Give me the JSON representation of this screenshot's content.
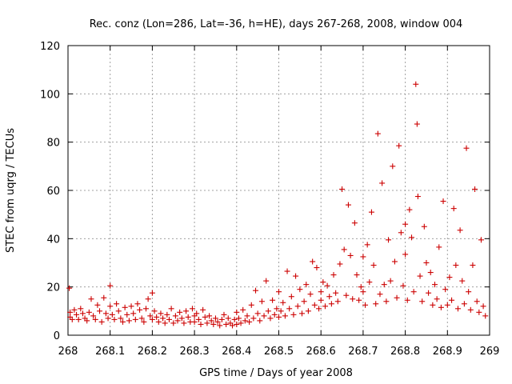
{
  "chart_data": {
    "type": "scatter",
    "title": "Rec. conz (Lon=286, Lat=-36, h=HE), days 267-268, 2008, window 004",
    "xlabel": "GPS time / Days of year 2008",
    "ylabel": "STEC from uqrg / TECUs",
    "xlim": [
      268,
      269
    ],
    "ylim": [
      0,
      120
    ],
    "xticks": [
      268,
      268.1,
      268.2,
      268.3,
      268.4,
      268.5,
      268.6,
      268.7,
      268.8,
      268.9,
      269
    ],
    "xtick_labels": [
      "268",
      "268.1",
      "268.2",
      "268.3",
      "268.4",
      "268.5",
      "268.6",
      "268.7",
      "268.8",
      "268.9",
      "269"
    ],
    "yticks": [
      0,
      20,
      40,
      60,
      80,
      100,
      120
    ],
    "ytick_labels": [
      "0",
      "20",
      "40",
      "60",
      "80",
      "100",
      "120"
    ],
    "grid": true,
    "marker": "+",
    "color": "#cc0000",
    "series": [
      {
        "name": "STEC",
        "points": [
          [
            268.003,
            19.5
          ],
          [
            268.005,
            9.5
          ],
          [
            268.005,
            7.5
          ],
          [
            268.01,
            6.5
          ],
          [
            268.015,
            10.5
          ],
          [
            268.02,
            8.5
          ],
          [
            268.025,
            6.5
          ],
          [
            268.03,
            11
          ],
          [
            268.035,
            9
          ],
          [
            268.04,
            7
          ],
          [
            268.045,
            6
          ],
          [
            268.05,
            9.5
          ],
          [
            268.055,
            15
          ],
          [
            268.06,
            8
          ],
          [
            268.065,
            6.5
          ],
          [
            268.07,
            12.5
          ],
          [
            268.075,
            10
          ],
          [
            268.08,
            5.5
          ],
          [
            268.085,
            15.5
          ],
          [
            268.09,
            9
          ],
          [
            268.095,
            7
          ],
          [
            268.1,
            20.5
          ],
          [
            268.1,
            12
          ],
          [
            268.105,
            8.5
          ],
          [
            268.11,
            6.5
          ],
          [
            268.115,
            13
          ],
          [
            268.12,
            10
          ],
          [
            268.125,
            7
          ],
          [
            268.13,
            5.5
          ],
          [
            268.135,
            11.5
          ],
          [
            268.14,
            8.5
          ],
          [
            268.145,
            6
          ],
          [
            268.15,
            12
          ],
          [
            268.155,
            9
          ],
          [
            268.16,
            6.5
          ],
          [
            268.165,
            13
          ],
          [
            268.17,
            10.5
          ],
          [
            268.175,
            7
          ],
          [
            268.18,
            5.5
          ],
          [
            268.185,
            11
          ],
          [
            268.19,
            15
          ],
          [
            268.195,
            8
          ],
          [
            268.2,
            17.5
          ],
          [
            268.2,
            6.5
          ],
          [
            268.205,
            10
          ],
          [
            268.21,
            7.5
          ],
          [
            268.215,
            5.5
          ],
          [
            268.22,
            9
          ],
          [
            268.225,
            7
          ],
          [
            268.23,
            5
          ],
          [
            268.235,
            8.5
          ],
          [
            268.24,
            6.5
          ],
          [
            268.245,
            11
          ],
          [
            268.25,
            5
          ],
          [
            268.255,
            8
          ],
          [
            268.26,
            6
          ],
          [
            268.265,
            9.5
          ],
          [
            268.27,
            7
          ],
          [
            268.275,
            5
          ],
          [
            268.28,
            10
          ],
          [
            268.285,
            7.5
          ],
          [
            268.29,
            5.5
          ],
          [
            268.295,
            11
          ],
          [
            268.3,
            8
          ],
          [
            268.3,
            5.5
          ],
          [
            268.305,
            9
          ],
          [
            268.31,
            6.5
          ],
          [
            268.315,
            4.5
          ],
          [
            268.32,
            10.5
          ],
          [
            268.325,
            7.5
          ],
          [
            268.33,
            5
          ],
          [
            268.335,
            8
          ],
          [
            268.34,
            6
          ],
          [
            268.345,
            4.5
          ],
          [
            268.35,
            7
          ],
          [
            268.355,
            5.5
          ],
          [
            268.36,
            4
          ],
          [
            268.365,
            6.5
          ],
          [
            268.37,
            8.5
          ],
          [
            268.375,
            4.5
          ],
          [
            268.38,
            7
          ],
          [
            268.385,
            5
          ],
          [
            268.39,
            4
          ],
          [
            268.395,
            6.5
          ],
          [
            268.4,
            9.5
          ],
          [
            268.4,
            4.5
          ],
          [
            268.405,
            7
          ],
          [
            268.41,
            5
          ],
          [
            268.415,
            10.5
          ],
          [
            268.42,
            6
          ],
          [
            268.425,
            8
          ],
          [
            268.43,
            5.5
          ],
          [
            268.435,
            12.5
          ],
          [
            268.44,
            7
          ],
          [
            268.445,
            18.5
          ],
          [
            268.45,
            9
          ],
          [
            268.455,
            6
          ],
          [
            268.46,
            14
          ],
          [
            268.465,
            8
          ],
          [
            268.47,
            22.5
          ],
          [
            268.475,
            10
          ],
          [
            268.48,
            7
          ],
          [
            268.485,
            14.5
          ],
          [
            268.49,
            8.5
          ],
          [
            268.495,
            11
          ],
          [
            268.5,
            18
          ],
          [
            268.5,
            7.5
          ],
          [
            268.505,
            10
          ],
          [
            268.51,
            13.5
          ],
          [
            268.515,
            8
          ],
          [
            268.52,
            26.5
          ],
          [
            268.525,
            11
          ],
          [
            268.53,
            16
          ],
          [
            268.535,
            8.5
          ],
          [
            268.54,
            24.5
          ],
          [
            268.545,
            12
          ],
          [
            268.55,
            19
          ],
          [
            268.555,
            9
          ],
          [
            268.56,
            14
          ],
          [
            268.565,
            21
          ],
          [
            268.57,
            10
          ],
          [
            268.575,
            17
          ],
          [
            268.58,
            30.5
          ],
          [
            268.585,
            12.5
          ],
          [
            268.59,
            28
          ],
          [
            268.595,
            11
          ],
          [
            268.6,
            18
          ],
          [
            268.6,
            14.5
          ],
          [
            268.605,
            22
          ],
          [
            268.61,
            12
          ],
          [
            268.615,
            20.5
          ],
          [
            268.62,
            16
          ],
          [
            268.625,
            13
          ],
          [
            268.63,
            25
          ],
          [
            268.635,
            17.5
          ],
          [
            268.64,
            14
          ],
          [
            268.645,
            29.5
          ],
          [
            268.65,
            60.5
          ],
          [
            268.655,
            35.5
          ],
          [
            268.66,
            16.5
          ],
          [
            268.665,
            54
          ],
          [
            268.67,
            33
          ],
          [
            268.675,
            15
          ],
          [
            268.68,
            46.5
          ],
          [
            268.685,
            25
          ],
          [
            268.69,
            14.5
          ],
          [
            268.695,
            20
          ],
          [
            268.7,
            32.5
          ],
          [
            268.7,
            18
          ],
          [
            268.705,
            12.5
          ],
          [
            268.71,
            37.5
          ],
          [
            268.715,
            22
          ],
          [
            268.72,
            51
          ],
          [
            268.725,
            29
          ],
          [
            268.73,
            13
          ],
          [
            268.735,
            83.5
          ],
          [
            268.74,
            17
          ],
          [
            268.745,
            63
          ],
          [
            268.75,
            21
          ],
          [
            268.755,
            14
          ],
          [
            268.76,
            39.5
          ],
          [
            268.765,
            22.5
          ],
          [
            268.77,
            70
          ],
          [
            268.775,
            30.5
          ],
          [
            268.78,
            15.5
          ],
          [
            268.785,
            78.5
          ],
          [
            268.79,
            42.5
          ],
          [
            268.795,
            20.5
          ],
          [
            268.8,
            33.5
          ],
          [
            268.8,
            46
          ],
          [
            268.805,
            14.5
          ],
          [
            268.81,
            52
          ],
          [
            268.815,
            40.5
          ],
          [
            268.82,
            18
          ],
          [
            268.825,
            104
          ],
          [
            268.828,
            87.5
          ],
          [
            268.83,
            57.5
          ],
          [
            268.835,
            24.5
          ],
          [
            268.84,
            14
          ],
          [
            268.845,
            45
          ],
          [
            268.85,
            30
          ],
          [
            268.855,
            17.5
          ],
          [
            268.86,
            26
          ],
          [
            268.865,
            12.5
          ],
          [
            268.87,
            21
          ],
          [
            268.875,
            15
          ],
          [
            268.88,
            36.5
          ],
          [
            268.885,
            11.5
          ],
          [
            268.89,
            55.5
          ],
          [
            268.895,
            19
          ],
          [
            268.9,
            12.5
          ],
          [
            268.905,
            24
          ],
          [
            268.91,
            14.5
          ],
          [
            268.915,
            52.5
          ],
          [
            268.92,
            29
          ],
          [
            268.925,
            11
          ],
          [
            268.93,
            43.5
          ],
          [
            268.935,
            22.5
          ],
          [
            268.94,
            13
          ],
          [
            268.945,
            77.5
          ],
          [
            268.95,
            18
          ],
          [
            268.955,
            10.5
          ],
          [
            268.96,
            29
          ],
          [
            268.965,
            60.5
          ],
          [
            268.97,
            14
          ],
          [
            268.975,
            9.5
          ],
          [
            268.98,
            39.5
          ],
          [
            268.985,
            12
          ],
          [
            268.99,
            8
          ]
        ]
      }
    ]
  }
}
